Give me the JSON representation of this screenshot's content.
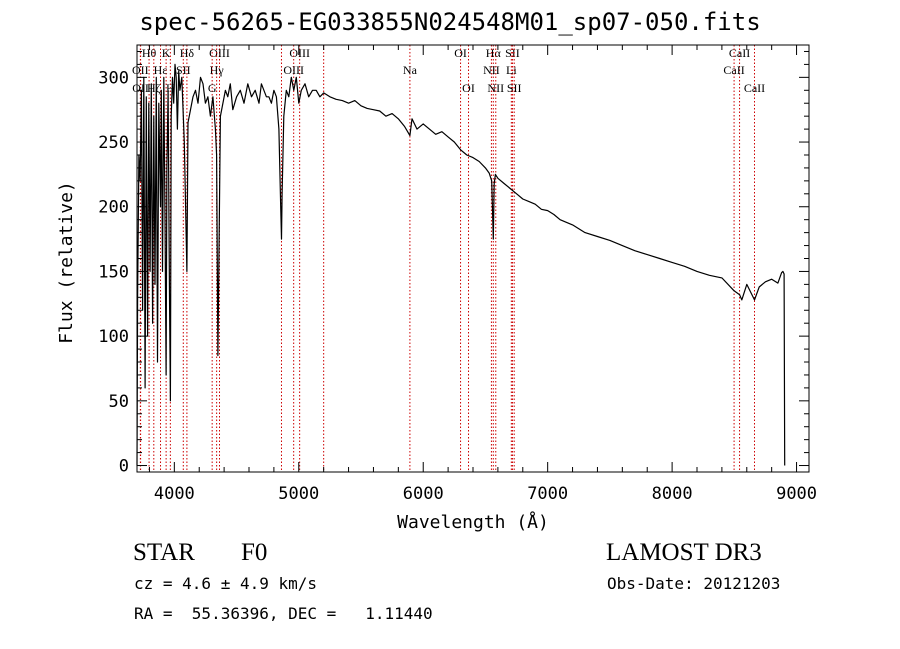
{
  "chart_data": {
    "type": "line",
    "title": "spec-56265-EG033855N024548M01_sp07-050.fits",
    "xlabel": "Wavelength (Å)",
    "ylabel": "Flux (relative)",
    "xlim": [
      3700,
      9100
    ],
    "ylim": [
      -5,
      325
    ],
    "xticks": [
      4000,
      5000,
      6000,
      7000,
      8000,
      9000
    ],
    "yticks": [
      0,
      50,
      100,
      150,
      200,
      250,
      300
    ],
    "series": [
      {
        "name": "flux",
        "x": [
          3700,
          3705,
          3715,
          3725,
          3735,
          3745,
          3755,
          3765,
          3775,
          3785,
          3795,
          3805,
          3815,
          3825,
          3835,
          3845,
          3855,
          3865,
          3875,
          3889,
          3895,
          3905,
          3915,
          3925,
          3934,
          3940,
          3950,
          3960,
          3968,
          3975,
          3985,
          3995,
          4005,
          4015,
          4025,
          4035,
          4045,
          4060,
          4080,
          4101,
          4110,
          4130,
          4150,
          4170,
          4190,
          4210,
          4230,
          4250,
          4270,
          4290,
          4310,
          4330,
          4340,
          4350,
          4370,
          4390,
          4410,
          4430,
          4450,
          4470,
          4500,
          4530,
          4560,
          4590,
          4620,
          4650,
          4680,
          4700,
          4720,
          4740,
          4760,
          4780,
          4800,
          4820,
          4840,
          4855,
          4861,
          4866,
          4880,
          4900,
          4920,
          4940,
          4960,
          4980,
          5000,
          5020,
          5050,
          5080,
          5110,
          5140,
          5170,
          5200,
          5250,
          5300,
          5350,
          5400,
          5450,
          5500,
          5550,
          5600,
          5650,
          5700,
          5750,
          5800,
          5850,
          5893,
          5910,
          5950,
          6000,
          6050,
          6100,
          6150,
          6200,
          6250,
          6300,
          6350,
          6400,
          6450,
          6500,
          6530,
          6550,
          6563,
          6570,
          6580,
          6600,
          6650,
          6700,
          6750,
          6800,
          6850,
          6900,
          6950,
          7000,
          7050,
          7100,
          7150,
          7200,
          7250,
          7300,
          7400,
          7500,
          7600,
          7700,
          7800,
          7900,
          8000,
          8100,
          8200,
          8300,
          8400,
          8498,
          8542,
          8560,
          8600,
          8662,
          8700,
          8750,
          8800,
          8850,
          8880,
          8890,
          8900,
          8905
        ],
        "y": [
          0,
          130,
          240,
          220,
          290,
          120,
          300,
          60,
          285,
          100,
          280,
          150,
          295,
          110,
          270,
          140,
          300,
          80,
          280,
          200,
          290,
          150,
          300,
          190,
          70,
          230,
          290,
          140,
          50,
          270,
          300,
          280,
          310,
          300,
          260,
          305,
          290,
          300,
          250,
          150,
          265,
          275,
          285,
          290,
          280,
          300,
          295,
          280,
          285,
          270,
          285,
          260,
          240,
          85,
          270,
          280,
          290,
          285,
          295,
          275,
          285,
          290,
          280,
          295,
          285,
          290,
          280,
          295,
          290,
          285,
          285,
          280,
          290,
          285,
          260,
          200,
          175,
          210,
          270,
          290,
          285,
          300,
          290,
          300,
          280,
          290,
          295,
          285,
          290,
          290,
          285,
          288,
          285,
          283,
          282,
          280,
          282,
          278,
          276,
          275,
          274,
          270,
          272,
          268,
          262,
          255,
          268,
          260,
          264,
          260,
          256,
          258,
          254,
          250,
          244,
          240,
          238,
          235,
          230,
          226,
          220,
          175,
          218,
          225,
          222,
          218,
          214,
          210,
          206,
          204,
          202,
          198,
          197,
          194,
          190,
          188,
          186,
          183,
          180,
          177,
          174,
          170,
          166,
          163,
          160,
          157,
          154,
          150,
          147,
          145,
          135,
          132,
          128,
          140,
          128,
          138,
          142,
          144,
          141,
          149,
          150,
          148,
          0
        ]
      }
    ],
    "lines": [
      {
        "label": "Hθ",
        "x": 3797,
        "row": 0
      },
      {
        "label": "K",
        "x": 3934,
        "row": 0
      },
      {
        "label": "Hδ",
        "x": 4101,
        "row": 0
      },
      {
        "label": "OIII",
        "x": 4363,
        "row": 0
      },
      {
        "label": "OIII",
        "x": 5007,
        "row": 0
      },
      {
        "label": "OI",
        "x": 6300,
        "row": 0
      },
      {
        "label": "Hα",
        "x": 6563,
        "row": 0
      },
      {
        "label": "SII",
        "x": 6717,
        "row": 0
      },
      {
        "label": "CaII",
        "x": 8542,
        "row": 0
      },
      {
        "label": "OII",
        "x": 3727,
        "row": 1
      },
      {
        "label": "Hε",
        "x": 3889,
        "row": 1
      },
      {
        "label": "SII",
        "x": 4072,
        "row": 1
      },
      {
        "label": "Hγ",
        "x": 4340,
        "row": 1
      },
      {
        "label": "OIII",
        "x": 4959,
        "row": 1
      },
      {
        "label": "Na",
        "x": 5893,
        "row": 1
      },
      {
        "label": "NII",
        "x": 6548,
        "row": 1
      },
      {
        "label": "Li",
        "x": 6708,
        "row": 1
      },
      {
        "label": "CaII",
        "x": 8498,
        "row": 1
      },
      {
        "label": "OII",
        "x": 3729,
        "row": 2
      },
      {
        "label": "Hζ",
        "x": 3835,
        "row": 2
      },
      {
        "label": "H",
        "x": 3968,
        "row": 2
      },
      {
        "label": "G",
        "x": 4304,
        "row": 2
      },
      {
        "label": "OI",
        "x": 6364,
        "row": 2
      },
      {
        "label": "NII",
        "x": 6583,
        "row": 2
      },
      {
        "label": "SII",
        "x": 6731,
        "row": 2
      },
      {
        "label": "CaII",
        "x": 8662,
        "row": 2
      },
      {
        "label": "",
        "x": 4861,
        "row": -1
      },
      {
        "label": "",
        "x": 5200,
        "row": -1
      }
    ]
  },
  "info": {
    "object_class": "STAR",
    "subclass": "F0",
    "survey": "LAMOST DR3",
    "redshift": "cz = 4.6 ± 4.9 km/s",
    "obs_date": "Obs-Date: 20121203",
    "coords": "RA =  55.36396, DEC =   1.11440"
  },
  "colors": {
    "line_marker": "#cc0000",
    "spectrum": "#000000"
  }
}
